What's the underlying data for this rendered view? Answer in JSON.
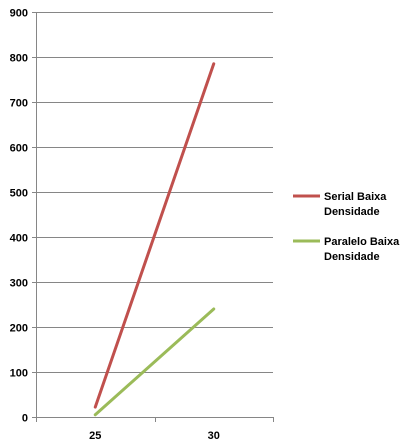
{
  "chart_data": {
    "type": "line",
    "x": [
      25,
      30
    ],
    "categories": [
      "25",
      "30"
    ],
    "series": [
      {
        "name": "Serial Baixa Densidade",
        "name_lines": [
          "Serial Baixa",
          "Densidade"
        ],
        "values": [
          22,
          785
        ],
        "color": "#c0504d"
      },
      {
        "name": "Paralelo Baixa Densidade",
        "name_lines": [
          "Paralelo Baixa",
          "Densidade"
        ],
        "values": [
          5,
          240
        ],
        "color": "#9bbb59"
      }
    ],
    "title": "",
    "xlabel": "",
    "ylabel": "",
    "ylim": [
      0,
      900
    ],
    "yticks": [
      "0",
      "100",
      "200",
      "300",
      "400",
      "500",
      "600",
      "700",
      "800",
      "900"
    ],
    "grid": true,
    "legend": "right",
    "grid_color": "#868686",
    "axis_color": "#868686"
  }
}
